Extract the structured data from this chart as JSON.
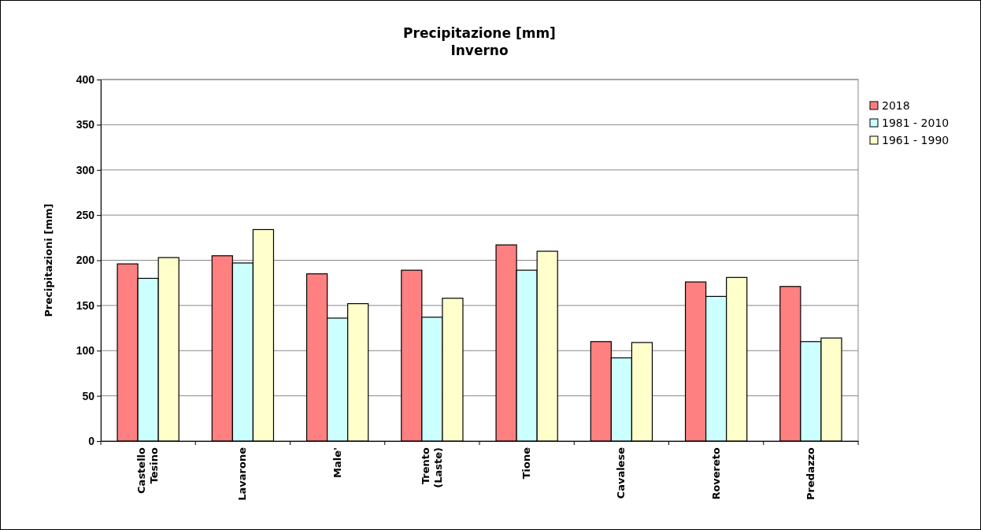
{
  "chart_data": {
    "type": "bar",
    "title": "Precipitazione [mm]",
    "subtitle": "Inverno",
    "ylabel": "Precipitazioni [mm]",
    "categories": [
      "Castello Tesino",
      "Lavarone",
      "Male'",
      "Trento (Laste)",
      "Tione",
      "Cavalese",
      "Rovereto",
      "Predazzo"
    ],
    "series": [
      {
        "name": "2018",
        "color": "#ff8080",
        "values": [
          196,
          205,
          185,
          189,
          217,
          110,
          176,
          171
        ]
      },
      {
        "name": "1981 - 2010",
        "color": "#ccffff",
        "values": [
          180,
          197,
          136,
          137,
          189,
          92,
          160,
          110
        ]
      },
      {
        "name": "1961 - 1990",
        "color": "#ffffcc",
        "values": [
          203,
          234,
          152,
          158,
          210,
          109,
          181,
          114
        ]
      }
    ],
    "ylim": [
      0,
      400
    ],
    "yticks": [
      0,
      50,
      100,
      150,
      200,
      250,
      300,
      350,
      400
    ],
    "grid": "y",
    "legend": "right"
  }
}
